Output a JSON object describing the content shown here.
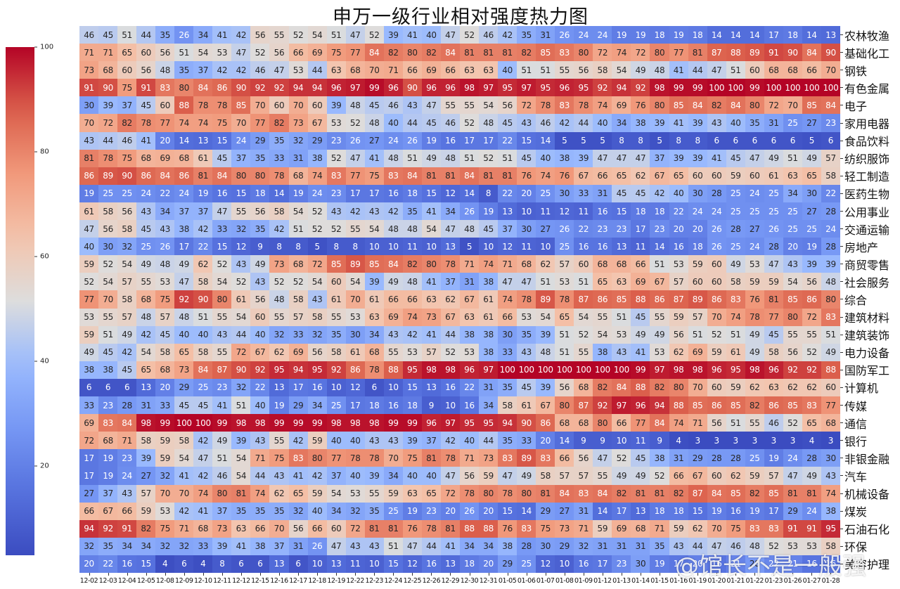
{
  "chart_data": {
    "type": "heatmap",
    "title": "申万一级行业相对强度热力图",
    "xlabel": "",
    "ylabel": "",
    "colormap": "coolwarm",
    "colorbar": {
      "min": 3,
      "max": 100,
      "ticks": [
        20,
        40,
        60,
        80,
        100
      ]
    },
    "x": [
      "12-02",
      "12-03",
      "12-04",
      "12-05",
      "12-08",
      "12-09",
      "12-10",
      "12-11",
      "12-12",
      "12-15",
      "12-16",
      "12-17",
      "12-18",
      "12-19",
      "12-22",
      "12-23",
      "12-24",
      "12-25",
      "12-26",
      "12-29",
      "12-30",
      "12-31",
      "01-05",
      "01-06",
      "01-07",
      "01-08",
      "01-09",
      "01-12",
      "01-13",
      "01-14",
      "01-15",
      "01-16",
      "01-19",
      "01-20",
      "01-21",
      "01-22",
      "01-23",
      "01-26",
      "01-27",
      "01-28"
    ],
    "y": [
      "农林牧渔",
      "基础化工",
      "钢铁",
      "有色金属",
      "电子",
      "家用电器",
      "食品饮料",
      "纺织服饰",
      "轻工制造",
      "医药生物",
      "公用事业",
      "交通运输",
      "房地产",
      "商贸零售",
      "社会服务",
      "综合",
      "建筑材料",
      "建筑装饰",
      "电力设备",
      "国防军工",
      "计算机",
      "传媒",
      "通信",
      "银行",
      "非银金融",
      "汽车",
      "机械设备",
      "煤炭",
      "石油石化",
      "环保",
      "美容护理"
    ],
    "values": [
      [
        46,
        45,
        51,
        44,
        35,
        26,
        34,
        41,
        42,
        56,
        55,
        52,
        54,
        51,
        47,
        52,
        39,
        41,
        40,
        47,
        52,
        46,
        42,
        35,
        31,
        26,
        24,
        24,
        19,
        19,
        18,
        19,
        18,
        14,
        14,
        14,
        17,
        18,
        14,
        13
      ],
      [
        71,
        71,
        65,
        60,
        56,
        51,
        54,
        53,
        47,
        52,
        56,
        66,
        69,
        75,
        77,
        84,
        82,
        80,
        82,
        84,
        81,
        81,
        81,
        82,
        85,
        83,
        80,
        72,
        74,
        72,
        80,
        77,
        81,
        87,
        88,
        89,
        91,
        90,
        84,
        90
      ],
      [
        73,
        68,
        60,
        56,
        48,
        35,
        37,
        42,
        42,
        46,
        47,
        53,
        44,
        63,
        68,
        70,
        71,
        66,
        69,
        66,
        63,
        63,
        40,
        51,
        51,
        55,
        56,
        58,
        54,
        49,
        48,
        41,
        44,
        47,
        51,
        60,
        68,
        68,
        66,
        70
      ],
      [
        91,
        90,
        75,
        91,
        83,
        80,
        84,
        86,
        90,
        92,
        92,
        94,
        94,
        96,
        97,
        99,
        96,
        90,
        96,
        96,
        98,
        97,
        95,
        97,
        95,
        96,
        95,
        92,
        94,
        92,
        98,
        99,
        99,
        100,
        100,
        99,
        100,
        100,
        100,
        100
      ],
      [
        30,
        39,
        37,
        45,
        60,
        88,
        78,
        78,
        85,
        70,
        60,
        70,
        60,
        39,
        48,
        45,
        46,
        43,
        47,
        55,
        55,
        54,
        56,
        72,
        78,
        83,
        78,
        74,
        69,
        76,
        80,
        85,
        84,
        82,
        84,
        80,
        72,
        70,
        85,
        84
      ],
      [
        70,
        72,
        82,
        78,
        77,
        74,
        74,
        75,
        70,
        77,
        82,
        73,
        67,
        53,
        52,
        48,
        40,
        44,
        45,
        46,
        52,
        48,
        45,
        43,
        46,
        42,
        44,
        40,
        34,
        38,
        39,
        41,
        39,
        43,
        40,
        35,
        31,
        25,
        27,
        23
      ],
      [
        43,
        44,
        46,
        41,
        20,
        14,
        13,
        15,
        24,
        29,
        35,
        32,
        29,
        23,
        26,
        27,
        24,
        26,
        19,
        16,
        17,
        17,
        22,
        15,
        14,
        5,
        5,
        5,
        8,
        8,
        5,
        8,
        8,
        6,
        6,
        6,
        6,
        6,
        5,
        6
      ],
      [
        81,
        78,
        75,
        68,
        69,
        68,
        61,
        45,
        37,
        35,
        33,
        31,
        38,
        52,
        47,
        41,
        48,
        51,
        49,
        48,
        51,
        52,
        51,
        45,
        40,
        38,
        39,
        47,
        47,
        47,
        37,
        39,
        39,
        41,
        45,
        47,
        49,
        51,
        49,
        57
      ],
      [
        86,
        89,
        90,
        86,
        84,
        86,
        81,
        84,
        80,
        80,
        78,
        68,
        74,
        83,
        77,
        75,
        83,
        84,
        81,
        81,
        84,
        81,
        81,
        76,
        74,
        76,
        67,
        66,
        65,
        62,
        67,
        65,
        60,
        60,
        59,
        60,
        61,
        63,
        65,
        58
      ],
      [
        19,
        25,
        25,
        24,
        22,
        24,
        19,
        16,
        15,
        18,
        14,
        19,
        24,
        23,
        17,
        17,
        16,
        18,
        15,
        12,
        14,
        8,
        22,
        20,
        25,
        30,
        33,
        31,
        45,
        45,
        42,
        40,
        30,
        28,
        25,
        24,
        25,
        34,
        30,
        22
      ],
      [
        61,
        58,
        56,
        43,
        34,
        37,
        37,
        47,
        55,
        56,
        58,
        54,
        52,
        43,
        42,
        43,
        42,
        35,
        41,
        34,
        26,
        19,
        13,
        10,
        11,
        12,
        11,
        16,
        15,
        18,
        18,
        22,
        24,
        24,
        25,
        25,
        25,
        25,
        27,
        28
      ],
      [
        47,
        56,
        58,
        45,
        43,
        38,
        42,
        33,
        32,
        35,
        42,
        51,
        52,
        52,
        55,
        54,
        48,
        48,
        54,
        47,
        48,
        45,
        37,
        30,
        27,
        26,
        22,
        23,
        23,
        17,
        23,
        20,
        20,
        26,
        28,
        27,
        26,
        25,
        25,
        24
      ],
      [
        40,
        30,
        32,
        25,
        26,
        17,
        22,
        15,
        12,
        9,
        8,
        8,
        5,
        8,
        8,
        10,
        10,
        11,
        10,
        13,
        5,
        10,
        12,
        11,
        10,
        25,
        16,
        16,
        13,
        11,
        14,
        16,
        18,
        26,
        25,
        24,
        28,
        20,
        19,
        28
      ],
      [
        59,
        52,
        54,
        49,
        48,
        49,
        62,
        52,
        43,
        49,
        73,
        68,
        72,
        85,
        89,
        85,
        84,
        82,
        80,
        78,
        71,
        74,
        71,
        68,
        62,
        57,
        60,
        68,
        68,
        66,
        51,
        53,
        59,
        60,
        49,
        53,
        47,
        43,
        39,
        39
      ],
      [
        52,
        54,
        57,
        55,
        53,
        47,
        58,
        54,
        52,
        43,
        52,
        52,
        54,
        60,
        54,
        39,
        49,
        48,
        41,
        37,
        31,
        38,
        47,
        47,
        51,
        53,
        51,
        65,
        63,
        69,
        67,
        57,
        60,
        60,
        58,
        59,
        59,
        54,
        56,
        48
      ],
      [
        77,
        70,
        58,
        68,
        75,
        92,
        90,
        80,
        61,
        56,
        48,
        58,
        43,
        61,
        70,
        61,
        66,
        66,
        63,
        62,
        67,
        61,
        74,
        78,
        89,
        78,
        87,
        86,
        85,
        88,
        86,
        87,
        89,
        86,
        83,
        76,
        81,
        85,
        86,
        80
      ],
      [
        53,
        55,
        57,
        48,
        57,
        48,
        51,
        55,
        54,
        60,
        55,
        57,
        58,
        55,
        53,
        63,
        69,
        74,
        73,
        67,
        63,
        61,
        66,
        53,
        54,
        65,
        54,
        55,
        51,
        45,
        55,
        59,
        57,
        70,
        74,
        78,
        77,
        80,
        72,
        83
      ],
      [
        59,
        51,
        49,
        42,
        45,
        40,
        40,
        43,
        44,
        40,
        32,
        33,
        32,
        35,
        30,
        34,
        43,
        42,
        41,
        44,
        38,
        38,
        30,
        35,
        39,
        51,
        52,
        54,
        53,
        49,
        49,
        56,
        51,
        52,
        51,
        49,
        45,
        55,
        55,
        51
      ],
      [
        49,
        45,
        42,
        54,
        58,
        65,
        58,
        55,
        72,
        67,
        62,
        69,
        56,
        58,
        61,
        68,
        55,
        53,
        57,
        52,
        53,
        38,
        33,
        43,
        48,
        51,
        55,
        38,
        43,
        41,
        53,
        62,
        69,
        59,
        61,
        49,
        58,
        56,
        52,
        49
      ],
      [
        38,
        38,
        45,
        65,
        68,
        73,
        84,
        87,
        90,
        92,
        95,
        94,
        95,
        92,
        86,
        78,
        88,
        95,
        98,
        98,
        96,
        97,
        100,
        100,
        100,
        100,
        100,
        100,
        100,
        99,
        97,
        98,
        98,
        96,
        95,
        98,
        96,
        92,
        92,
        88
      ],
      [
        6,
        6,
        6,
        13,
        20,
        29,
        25,
        23,
        32,
        22,
        13,
        17,
        16,
        10,
        12,
        6,
        10,
        15,
        13,
        16,
        22,
        31,
        35,
        45,
        39,
        56,
        68,
        82,
        84,
        88,
        82,
        80,
        70,
        60,
        59,
        62,
        63,
        62,
        62,
        60
      ],
      [
        33,
        23,
        28,
        31,
        33,
        45,
        45,
        41,
        51,
        40,
        19,
        29,
        34,
        25,
        17,
        18,
        16,
        18,
        9,
        10,
        16,
        34,
        58,
        61,
        67,
        80,
        87,
        92,
        97,
        96,
        94,
        88,
        85,
        86,
        85,
        82,
        86,
        85,
        83,
        77
      ],
      [
        69,
        83,
        84,
        98,
        99,
        100,
        100,
        99,
        98,
        98,
        99,
        99,
        99,
        98,
        98,
        98,
        99,
        99,
        96,
        97,
        95,
        95,
        94,
        90,
        86,
        68,
        68,
        80,
        66,
        77,
        84,
        74,
        71,
        56,
        51,
        55,
        46,
        52,
        65,
        68
      ],
      [
        72,
        68,
        71,
        58,
        59,
        58,
        42,
        49,
        39,
        43,
        55,
        42,
        59,
        40,
        40,
        43,
        43,
        39,
        37,
        42,
        40,
        44,
        35,
        33,
        20,
        14,
        9,
        9,
        10,
        11,
        9,
        4,
        3,
        3,
        3,
        3,
        3,
        3,
        4,
        3
      ],
      [
        17,
        19,
        23,
        39,
        59,
        54,
        47,
        51,
        54,
        71,
        75,
        83,
        80,
        77,
        78,
        78,
        70,
        75,
        81,
        78,
        71,
        73,
        83,
        89,
        83,
        66,
        56,
        47,
        52,
        45,
        38,
        31,
        29,
        28,
        28,
        25,
        19,
        24,
        28,
        30
      ],
      [
        17,
        19,
        24,
        27,
        32,
        41,
        42,
        46,
        54,
        44,
        43,
        41,
        42,
        37,
        40,
        39,
        34,
        40,
        40,
        47,
        56,
        59,
        47,
        49,
        58,
        57,
        57,
        55,
        49,
        49,
        52,
        66,
        67,
        60,
        62,
        59,
        57,
        47,
        49,
        43
      ],
      [
        27,
        37,
        43,
        57,
        70,
        70,
        74,
        80,
        81,
        74,
        62,
        65,
        59,
        54,
        53,
        55,
        59,
        63,
        65,
        72,
        78,
        80,
        78,
        80,
        81,
        84,
        83,
        84,
        82,
        81,
        81,
        82,
        87,
        84,
        85,
        82,
        85,
        81,
        81,
        74
      ],
      [
        66,
        67,
        66,
        59,
        53,
        42,
        41,
        37,
        35,
        35,
        35,
        32,
        40,
        34,
        32,
        35,
        25,
        19,
        23,
        20,
        26,
        20,
        15,
        14,
        29,
        27,
        31,
        14,
        17,
        13,
        18,
        18,
        15,
        19,
        16,
        19,
        17,
        29,
        24,
        38
      ],
      [
        94,
        92,
        91,
        82,
        75,
        71,
        68,
        73,
        63,
        66,
        70,
        56,
        66,
        60,
        72,
        81,
        81,
        76,
        78,
        81,
        88,
        88,
        76,
        83,
        75,
        73,
        71,
        59,
        69,
        68,
        71,
        59,
        62,
        70,
        75,
        83,
        83,
        91,
        91,
        95
      ],
      [
        32,
        35,
        34,
        34,
        32,
        32,
        33,
        39,
        41,
        38,
        37,
        31,
        26,
        47,
        43,
        43,
        51,
        47,
        44,
        41,
        34,
        34,
        38,
        28,
        30,
        29,
        32,
        31,
        31,
        31,
        35,
        43,
        44,
        47,
        46,
        48,
        52,
        53,
        53,
        58
      ],
      [
        20,
        22,
        16,
        15,
        4,
        6,
        4,
        8,
        6,
        6,
        13,
        6,
        10,
        13,
        11,
        10,
        15,
        12,
        16,
        13,
        18,
        20,
        29,
        25,
        12,
        10,
        16,
        17,
        23,
        30,
        19,
        17,
        20,
        16,
        21,
        28,
        22,
        21,
        16,
        16
      ]
    ]
  },
  "colorbar_ticks": [
    {
      "label": "100",
      "value": 100
    },
    {
      "label": "80",
      "value": 80
    },
    {
      "label": "60",
      "value": 60
    },
    {
      "label": "40",
      "value": 40
    },
    {
      "label": "20",
      "value": 20
    }
  ],
  "colors": {
    "low": "#3b4cc0",
    "mid": "#dddddd",
    "high": "#b40426"
  },
  "watermark": "@馆长不是一般强"
}
